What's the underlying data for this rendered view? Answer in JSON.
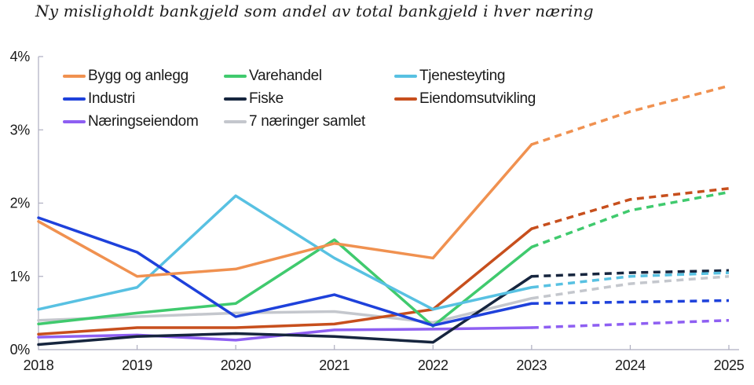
{
  "chart_data": {
    "type": "line",
    "title": "Ny misligholdt bankgjeld som andel av total bankgjeld i hver næring",
    "x": [
      2018,
      2019,
      2020,
      2021,
      2022,
      2023,
      2024,
      2025
    ],
    "x_tick_labels": [
      "2018",
      "2019",
      "2020",
      "2021",
      "2022",
      "2023",
      "2024",
      "2025"
    ],
    "y_tick_labels": [
      "0%",
      "1%",
      "2%",
      "3%",
      "4%"
    ],
    "ylim": [
      0,
      4
    ],
    "unit": "%",
    "grid": false,
    "legend_position": "inside-top-left",
    "solid_until_x": 2023,
    "forecast_style": "dashed",
    "series": [
      {
        "name": "Bygg og anlegg",
        "color": "#F09150",
        "values": [
          1.75,
          1.0,
          1.1,
          1.45,
          1.25,
          2.8,
          3.25,
          3.6
        ]
      },
      {
        "name": "Varehandel",
        "color": "#40CA6E",
        "values": [
          0.35,
          0.5,
          0.63,
          1.5,
          0.32,
          1.4,
          1.9,
          2.15
        ]
      },
      {
        "name": "Tjenesteyting",
        "color": "#58C1E2",
        "values": [
          0.55,
          0.85,
          2.1,
          1.25,
          0.55,
          0.85,
          1.0,
          1.05
        ]
      },
      {
        "name": "Industri",
        "color": "#1E41DB",
        "values": [
          1.8,
          1.33,
          0.45,
          0.75,
          0.33,
          0.63,
          0.65,
          0.67
        ]
      },
      {
        "name": "Fiske",
        "color": "#16253E",
        "values": [
          0.07,
          0.18,
          0.22,
          0.18,
          0.1,
          1.0,
          1.05,
          1.08
        ]
      },
      {
        "name": "Eiendomsutvikling",
        "color": "#C74F1D",
        "values": [
          0.21,
          0.3,
          0.3,
          0.35,
          0.55,
          1.65,
          2.05,
          2.2
        ]
      },
      {
        "name": "Næringseiendom",
        "color": "#8E5FF2",
        "values": [
          0.17,
          0.2,
          0.13,
          0.27,
          0.28,
          0.3,
          0.35,
          0.4
        ]
      },
      {
        "name": "7 næringer samlet",
        "color": "#C4C7CD",
        "values": [
          0.4,
          0.45,
          0.5,
          0.52,
          0.37,
          0.7,
          0.9,
          1.0
        ]
      }
    ]
  },
  "colors": {
    "axis": "#AEAEC0",
    "text": "#1A1A1A",
    "background": "#FFFFFF"
  }
}
